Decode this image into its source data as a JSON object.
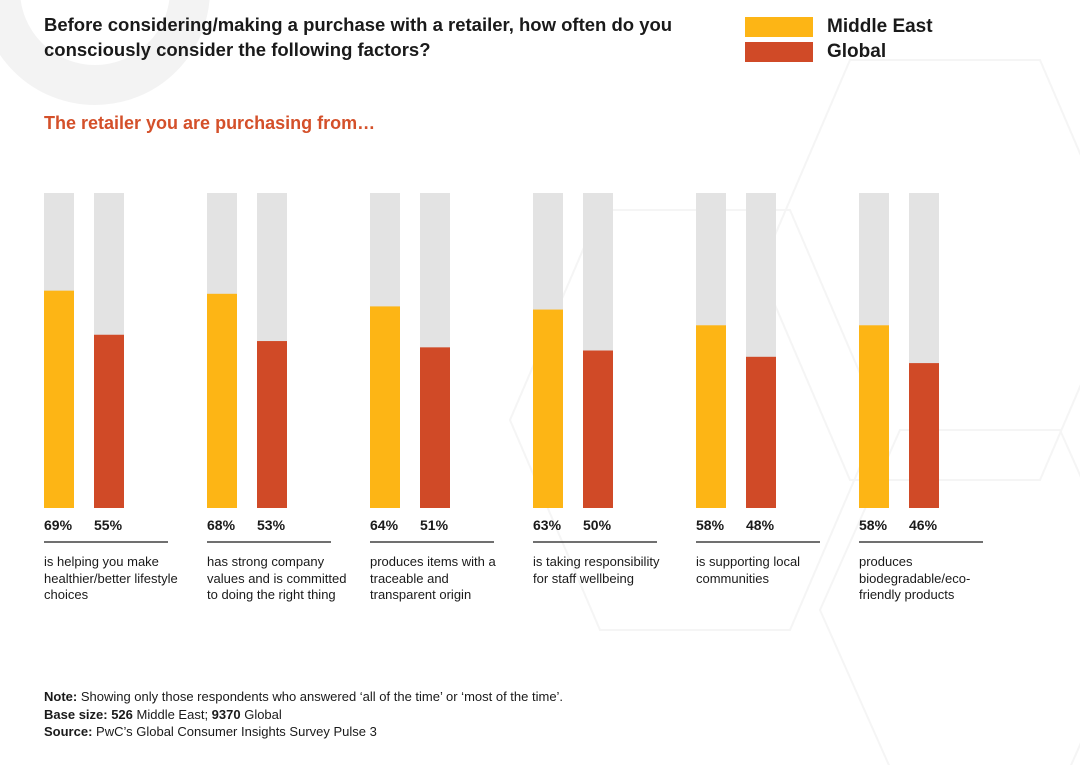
{
  "title": "Before considering/making a purchase with a retailer, how often do you consciously consider the following factors?",
  "subtitle": "The retailer you are purchasing from…",
  "colors": {
    "middle_east": "#fdb515",
    "global": "#d04a27",
    "track": "#e3e3e3",
    "accent_text": "#d4502a"
  },
  "chart_data": {
    "type": "bar",
    "title": "Before considering/making a purchase with a retailer, how often do you consciously consider the following factors?",
    "subtitle": "The retailer you are purchasing from…",
    "ylim": [
      0,
      100
    ],
    "legend_position": "top-right",
    "categories": [
      "is helping you make healthier/better lifestyle choices",
      "has strong company values and is committed to doing the right thing",
      "produces items with a traceable and transparent origin",
      "is taking responsibility for staff wellbeing",
      "is supporting local communities",
      "produces biodegradable/eco-friendly products"
    ],
    "series": [
      {
        "name": "Middle East",
        "values": [
          69,
          68,
          64,
          63,
          58,
          58
        ],
        "labels": [
          "69%",
          "68%",
          "64%",
          "63%",
          "58%",
          "58%"
        ]
      },
      {
        "name": "Global",
        "values": [
          55,
          53,
          51,
          50,
          48,
          46
        ],
        "labels": [
          "55%",
          "53%",
          "51%",
          "50%",
          "48%",
          "46%"
        ]
      }
    ]
  },
  "footnotes": {
    "note_label": "Note:",
    "note_text": " Showing only those respondents who answered ‘all of the time’ or ‘most of the time’.",
    "base_label": "Base size:",
    "base_me_value": " 526",
    "base_me_text": " Middle East; ",
    "base_gl_value": "9370",
    "base_gl_text": " Global",
    "source_label": "Source:",
    "source_text": " PwC’s Global Consumer Insights Survey Pulse 3"
  }
}
